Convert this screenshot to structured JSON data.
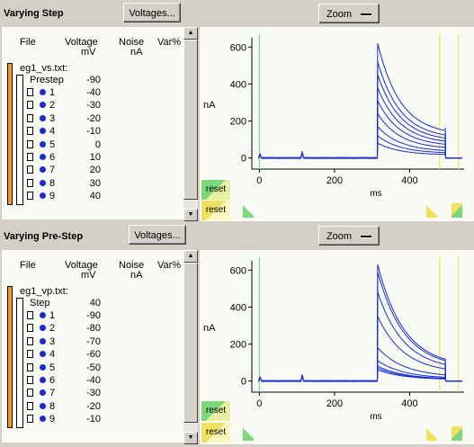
{
  "panels": [
    {
      "title": "Varying Step",
      "voltages_button": "Voltages...",
      "zoom_button": "Zoom",
      "columns": {
        "file": "File",
        "voltage": "Voltage",
        "voltage_unit": "mV",
        "noise": "Noise",
        "noise_unit": "nA",
        "var": "Var%"
      },
      "file_name": "eg1_vs.txt:",
      "sub_label": "Prestep",
      "sub_value": "-90",
      "rows": [
        {
          "idx": "1",
          "val": "-40"
        },
        {
          "idx": "2",
          "val": "-30"
        },
        {
          "idx": "3",
          "val": "-20"
        },
        {
          "idx": "4",
          "val": "-10"
        },
        {
          "idx": "5",
          "val": "0"
        },
        {
          "idx": "6",
          "val": "10"
        },
        {
          "idx": "7",
          "val": "20"
        },
        {
          "idx": "8",
          "val": "30"
        },
        {
          "idx": "9",
          "val": "40"
        }
      ],
      "reset_labels": [
        "reset",
        "reset"
      ],
      "chart_data": {
        "type": "line",
        "ylabel": "nA",
        "xlabel": "ms",
        "xlim": [
          -20,
          545
        ],
        "ylim": [
          -60,
          650
        ],
        "xticks": [
          "0",
          "200",
          "400"
        ],
        "yticks": [
          "0",
          "200",
          "400",
          "600"
        ],
        "cursors_ms": [
          0,
          480,
          530
        ],
        "trace_peaks_nA": [
          620,
          520,
          450,
          380,
          310,
          240,
          170,
          120,
          80
        ]
      }
    },
    {
      "title": "Varying Pre-Step",
      "voltages_button": "Voltages...",
      "zoom_button": "Zoom",
      "columns": {
        "file": "File",
        "voltage": "Voltage",
        "voltage_unit": "mV",
        "noise": "Noise",
        "noise_unit": "nA",
        "var": "Var%"
      },
      "file_name": "eg1_vp.txt:",
      "sub_label": "Step",
      "sub_value": "40",
      "rows": [
        {
          "idx": "1",
          "val": "-90"
        },
        {
          "idx": "2",
          "val": "-80"
        },
        {
          "idx": "3",
          "val": "-70"
        },
        {
          "idx": "4",
          "val": "-60"
        },
        {
          "idx": "5",
          "val": "-50"
        },
        {
          "idx": "6",
          "val": "-40"
        },
        {
          "idx": "7",
          "val": "-30"
        },
        {
          "idx": "8",
          "val": "-20"
        },
        {
          "idx": "9",
          "val": "-10"
        }
      ],
      "reset_labels": [
        "reset",
        "reset"
      ],
      "chart_data": {
        "type": "line",
        "ylabel": "nA",
        "xlabel": "ms",
        "xlim": [
          -20,
          545
        ],
        "ylim": [
          -60,
          650
        ],
        "xticks": [
          "0",
          "200",
          "400"
        ],
        "yticks": [
          "0",
          "200",
          "400",
          "600"
        ],
        "cursors_ms": [
          0,
          480,
          530
        ],
        "trace_peaks_nA": [
          630,
          590,
          480,
          350,
          180,
          110,
          80,
          70,
          60
        ]
      }
    }
  ],
  "colors": {
    "trace": "#1a2cd0",
    "cursor_green": "#7cd87c",
    "cursor_yellow": "#f0e060",
    "orange": "#ff9a00"
  }
}
